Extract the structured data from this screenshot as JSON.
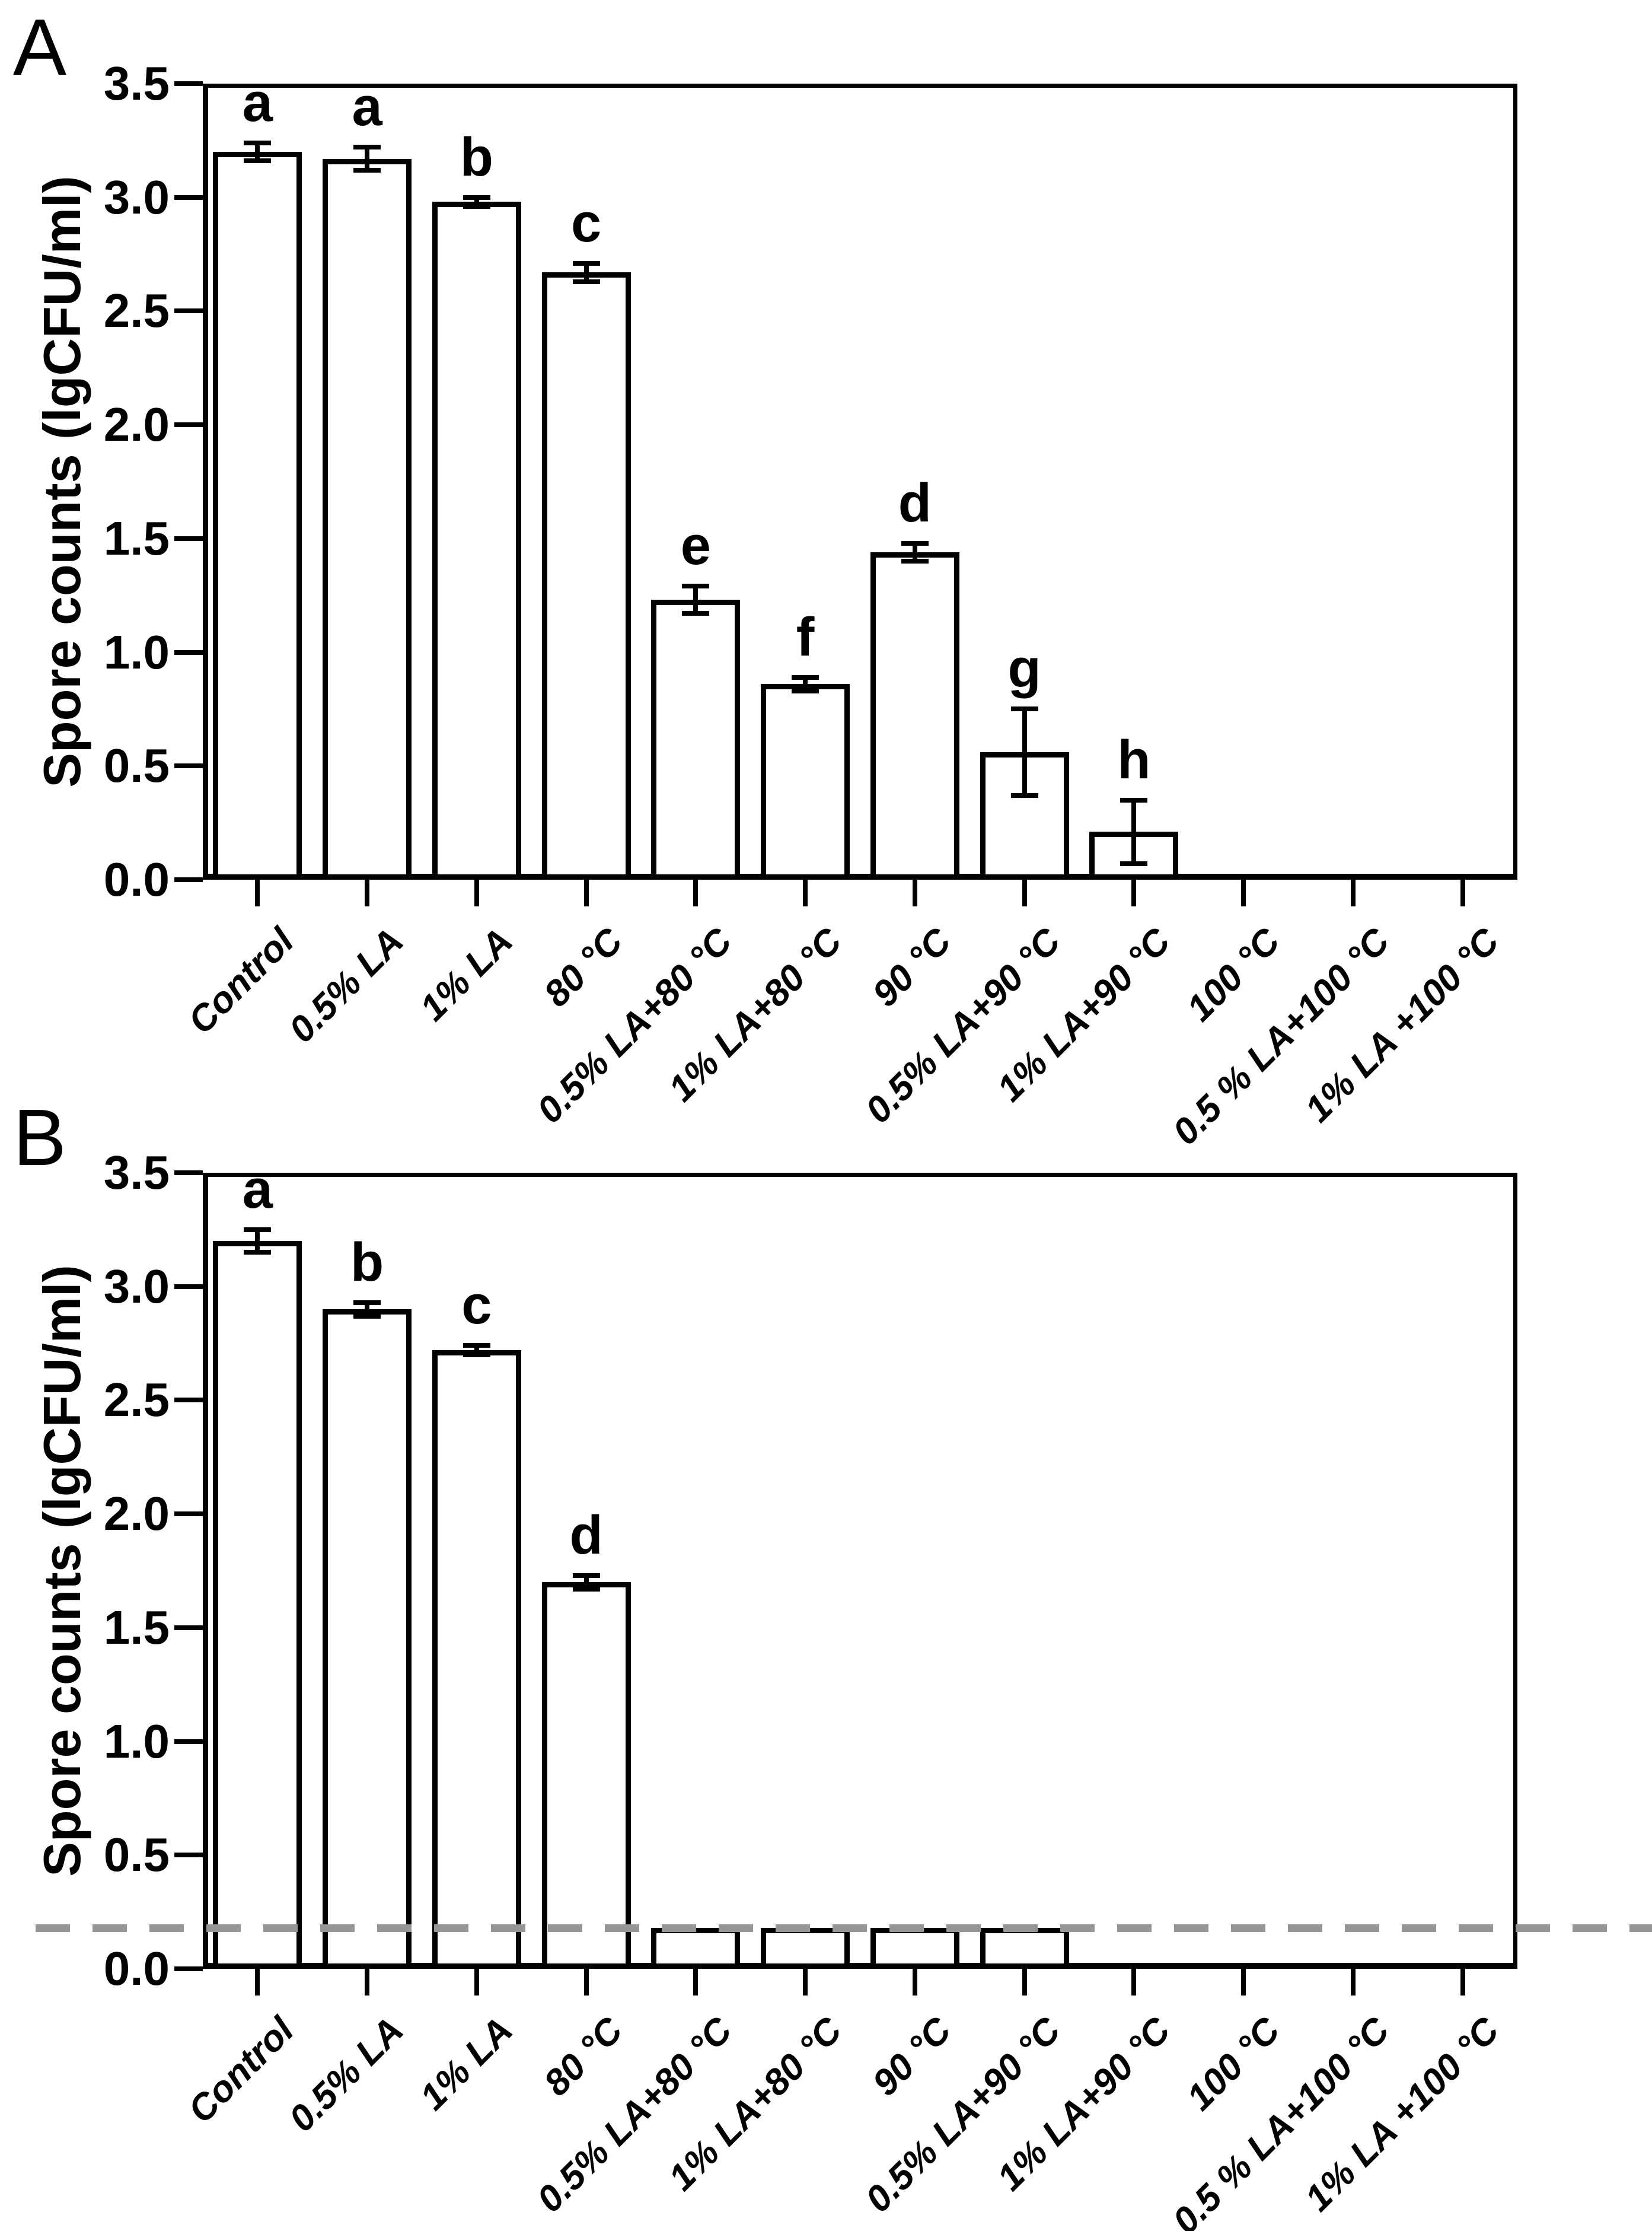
{
  "figure": {
    "panel_labels": [
      "A",
      "B"
    ]
  },
  "chart_data": [
    {
      "type": "bar",
      "panel": "A",
      "title": "",
      "xlabel": "",
      "ylabel": "Spore counts (lgCFU/ml)",
      "ylim": [
        0,
        3.5
      ],
      "ytick_labels": [
        "3.5",
        "3.0",
        "2.5",
        "2.0",
        "1.5",
        "1.0",
        "0.5",
        "0.0"
      ],
      "grid": false,
      "legend": "none",
      "bar_fill": "#ffffff",
      "bar_border": "#000000",
      "categories": [
        "Control",
        "0.5% LA",
        "1% LA",
        "80 °C",
        "0.5% LA+80 °C",
        "1% LA+80 °C",
        "90 °C",
        "0.5% LA+90 °C",
        "1% LA+90 °C",
        "100 °C",
        "0.5 % LA+100 °C",
        "1% LA +100 °C"
      ],
      "values": [
        3.2,
        3.17,
        2.98,
        2.67,
        1.23,
        0.86,
        1.44,
        0.56,
        0.21,
        0,
        0,
        0
      ],
      "errors": [
        0.04,
        0.05,
        0.02,
        0.04,
        0.06,
        0.03,
        0.04,
        0.19,
        0.14,
        0,
        0,
        0
      ],
      "sig_letters": [
        "a",
        "a",
        "b",
        "c",
        "e",
        "f",
        "d",
        "g",
        "h",
        "",
        "",
        ""
      ]
    },
    {
      "type": "bar",
      "panel": "B",
      "title": "",
      "xlabel": "",
      "ylabel": "Spore counts (lgCFU/ml)",
      "ylim": [
        0,
        3.5
      ],
      "ytick_labels": [
        "3.5",
        "3.0",
        "2.5",
        "2.0",
        "1.5",
        "1.0",
        "0.5",
        "0.0"
      ],
      "grid": false,
      "legend": "none",
      "bar_fill": "#ffffff",
      "bar_border": "#000000",
      "categories": [
        "Control",
        "0.5% LA",
        "1% LA",
        "80 °C",
        "0.5% LA+80 °C",
        "1% LA+80 °C",
        "90 °C",
        "0.5% LA+90 °C",
        "1% LA+90 °C",
        "100 °C",
        "0.5 % LA+100 °C",
        "1% LA +100 °C"
      ],
      "values": [
        3.2,
        2.9,
        2.72,
        1.7,
        0.18,
        0.18,
        0.18,
        0.18,
        0,
        0,
        0,
        0
      ],
      "errors": [
        0.05,
        0.03,
        0.02,
        0.03,
        0,
        0,
        0,
        0,
        0,
        0,
        0,
        0
      ],
      "sig_letters": [
        "a",
        "b",
        "c",
        "d",
        "",
        "",
        "",
        "",
        "",
        "",
        "",
        ""
      ],
      "dashed_line": {
        "value": 0.18,
        "color": "#969696"
      }
    }
  ]
}
